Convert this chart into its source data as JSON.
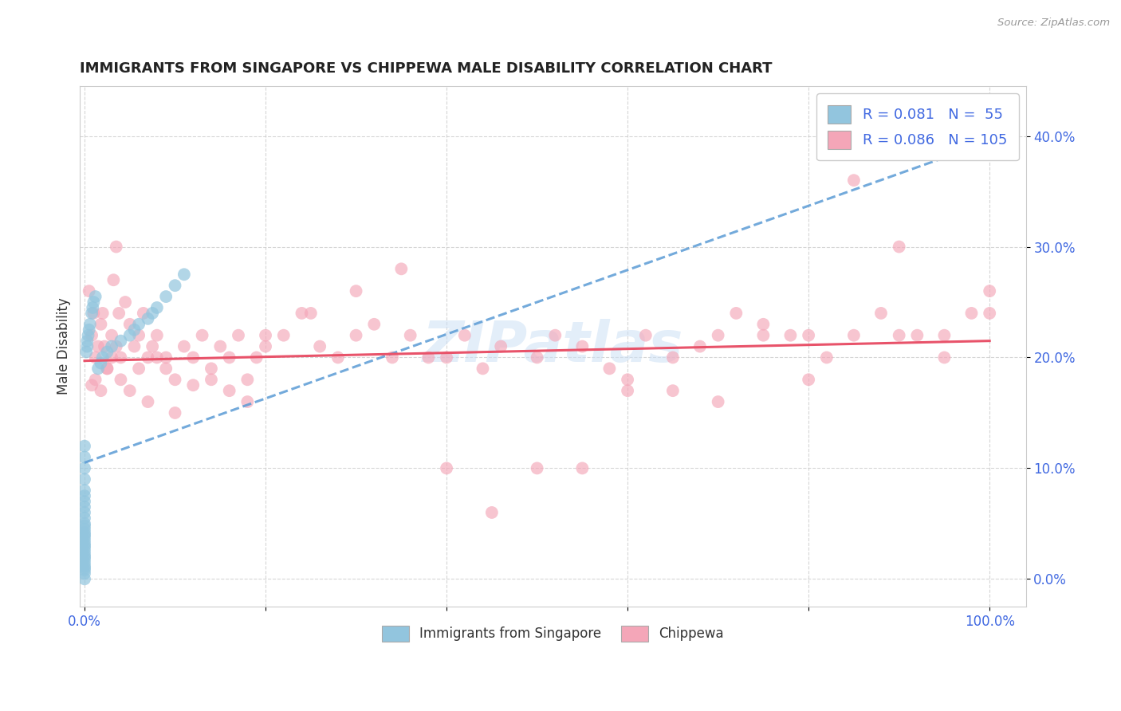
{
  "title": "IMMIGRANTS FROM SINGAPORE VS CHIPPEWA MALE DISABILITY CORRELATION CHART",
  "source": "Source: ZipAtlas.com",
  "ylabel": "Male Disability",
  "x_ticks": [
    0.0,
    0.2,
    0.4,
    0.6,
    0.8,
    1.0
  ],
  "x_tick_labels": [
    "0.0%",
    "",
    "",
    "",
    "",
    "100.0%"
  ],
  "y_ticks": [
    0.0,
    0.1,
    0.2,
    0.3,
    0.4
  ],
  "y_tick_labels": [
    "0.0%",
    "10.0%",
    "20.0%",
    "30.0%",
    "40.0%"
  ],
  "xlim": [
    -0.005,
    1.04
  ],
  "ylim": [
    -0.025,
    0.445
  ],
  "legend_R_blue": "0.081",
  "legend_N_blue": "55",
  "legend_R_pink": "0.086",
  "legend_N_pink": "105",
  "legend_label_blue": "Immigrants from Singapore",
  "legend_label_pink": "Chippewa",
  "color_blue": "#92c5de",
  "color_pink": "#f4a6b8",
  "color_blue_line": "#5b9bd5",
  "color_pink_line": "#e8536a",
  "watermark_text": "ZIPatlas",
  "blue_trend_x0": 0.0,
  "blue_trend_y0": 0.105,
  "blue_trend_x1": 1.0,
  "blue_trend_y1": 0.395,
  "pink_trend_x0": 0.0,
  "pink_trend_y0": 0.197,
  "pink_trend_x1": 1.0,
  "pink_trend_y1": 0.215,
  "singapore_x": [
    0.0,
    0.0,
    0.0,
    0.0,
    0.0,
    0.0,
    0.0,
    0.0,
    0.0,
    0.0,
    0.0,
    0.0,
    0.0,
    0.0,
    0.0,
    0.0,
    0.0,
    0.0,
    0.0,
    0.0,
    0.0,
    0.0,
    0.0,
    0.0,
    0.0,
    0.0,
    0.0,
    0.0,
    0.0,
    0.0,
    0.002,
    0.003,
    0.003,
    0.004,
    0.005,
    0.006,
    0.008,
    0.009,
    0.01,
    0.012,
    0.015,
    0.018,
    0.02,
    0.025,
    0.03,
    0.04,
    0.05,
    0.055,
    0.06,
    0.07,
    0.075,
    0.08,
    0.09,
    0.1,
    0.11
  ],
  "singapore_y": [
    0.0,
    0.005,
    0.008,
    0.01,
    0.012,
    0.015,
    0.018,
    0.02,
    0.022,
    0.025,
    0.028,
    0.03,
    0.032,
    0.035,
    0.038,
    0.04,
    0.042,
    0.045,
    0.048,
    0.05,
    0.055,
    0.06,
    0.065,
    0.07,
    0.075,
    0.08,
    0.09,
    0.1,
    0.11,
    0.12,
    0.205,
    0.21,
    0.215,
    0.22,
    0.225,
    0.23,
    0.24,
    0.245,
    0.25,
    0.255,
    0.19,
    0.195,
    0.2,
    0.205,
    0.21,
    0.215,
    0.22,
    0.225,
    0.23,
    0.235,
    0.24,
    0.245,
    0.255,
    0.265,
    0.275
  ],
  "chippewa_x": [
    0.005,
    0.008,
    0.01,
    0.012,
    0.015,
    0.018,
    0.02,
    0.022,
    0.025,
    0.03,
    0.032,
    0.035,
    0.038,
    0.04,
    0.045,
    0.05,
    0.055,
    0.06,
    0.065,
    0.07,
    0.075,
    0.08,
    0.09,
    0.1,
    0.11,
    0.12,
    0.13,
    0.14,
    0.15,
    0.16,
    0.17,
    0.18,
    0.19,
    0.2,
    0.22,
    0.24,
    0.26,
    0.28,
    0.3,
    0.32,
    0.34,
    0.36,
    0.4,
    0.42,
    0.44,
    0.46,
    0.5,
    0.52,
    0.55,
    0.58,
    0.6,
    0.62,
    0.65,
    0.68,
    0.7,
    0.72,
    0.75,
    0.78,
    0.8,
    0.82,
    0.85,
    0.88,
    0.9,
    0.92,
    0.95,
    0.98,
    1.0,
    0.008,
    0.012,
    0.018,
    0.025,
    0.03,
    0.035,
    0.04,
    0.05,
    0.06,
    0.07,
    0.08,
    0.09,
    0.1,
    0.12,
    0.14,
    0.16,
    0.18,
    0.2,
    0.25,
    0.3,
    0.35,
    0.4,
    0.45,
    0.5,
    0.55,
    0.6,
    0.65,
    0.7,
    0.75,
    0.8,
    0.85,
    0.9,
    0.95,
    1.0,
    0.38
  ],
  "chippewa_y": [
    0.26,
    0.22,
    0.24,
    0.2,
    0.21,
    0.23,
    0.24,
    0.21,
    0.19,
    0.22,
    0.27,
    0.3,
    0.24,
    0.2,
    0.25,
    0.23,
    0.21,
    0.22,
    0.24,
    0.2,
    0.21,
    0.22,
    0.2,
    0.18,
    0.21,
    0.2,
    0.22,
    0.19,
    0.21,
    0.2,
    0.22,
    0.18,
    0.2,
    0.21,
    0.22,
    0.24,
    0.21,
    0.2,
    0.22,
    0.23,
    0.2,
    0.22,
    0.2,
    0.22,
    0.19,
    0.21,
    0.2,
    0.22,
    0.21,
    0.19,
    0.18,
    0.22,
    0.2,
    0.21,
    0.22,
    0.24,
    0.23,
    0.22,
    0.22,
    0.2,
    0.22,
    0.24,
    0.3,
    0.22,
    0.22,
    0.24,
    0.26,
    0.175,
    0.18,
    0.17,
    0.19,
    0.2,
    0.21,
    0.18,
    0.17,
    0.19,
    0.16,
    0.2,
    0.19,
    0.15,
    0.175,
    0.18,
    0.17,
    0.16,
    0.22,
    0.24,
    0.26,
    0.28,
    0.1,
    0.06,
    0.1,
    0.1,
    0.17,
    0.17,
    0.16,
    0.22,
    0.18,
    0.36,
    0.22,
    0.2,
    0.24,
    0.2
  ]
}
